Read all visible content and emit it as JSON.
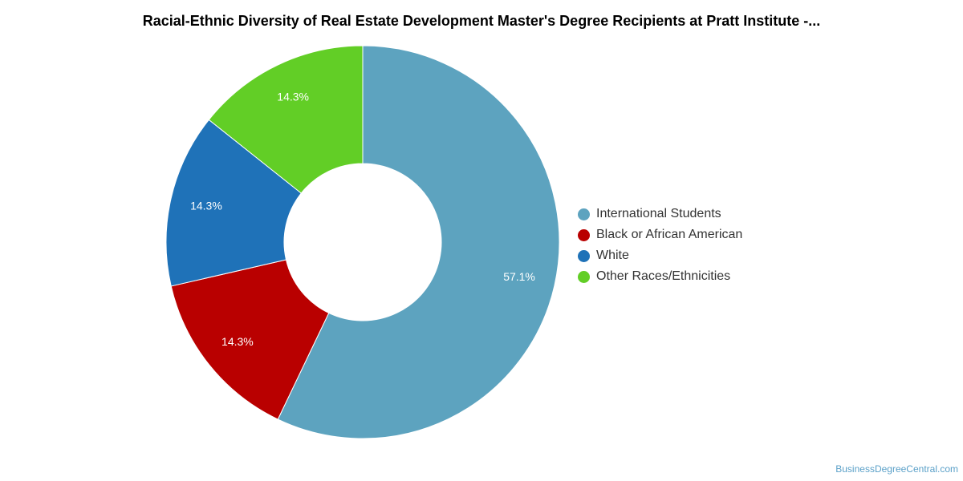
{
  "chart_data": {
    "type": "pie",
    "title": "Racial-Ethnic Diversity of Real Estate Development Master's Degree Recipients at Pratt Institute -...",
    "slices": [
      {
        "name": "International Students",
        "value": 57.1,
        "label": "57.1%",
        "color": "#5da3bf"
      },
      {
        "name": "Black or African American",
        "value": 14.3,
        "label": "14.3%",
        "color": "#b90000"
      },
      {
        "name": "White",
        "value": 14.3,
        "label": "14.3%",
        "color": "#1f72b8"
      },
      {
        "name": "Other Races/Ethnicities",
        "value": 14.3,
        "label": "14.3%",
        "color": "#62ce26"
      }
    ],
    "donut": true,
    "legend_position": "right"
  },
  "watermark": "BusinessDegreeCentral.com"
}
